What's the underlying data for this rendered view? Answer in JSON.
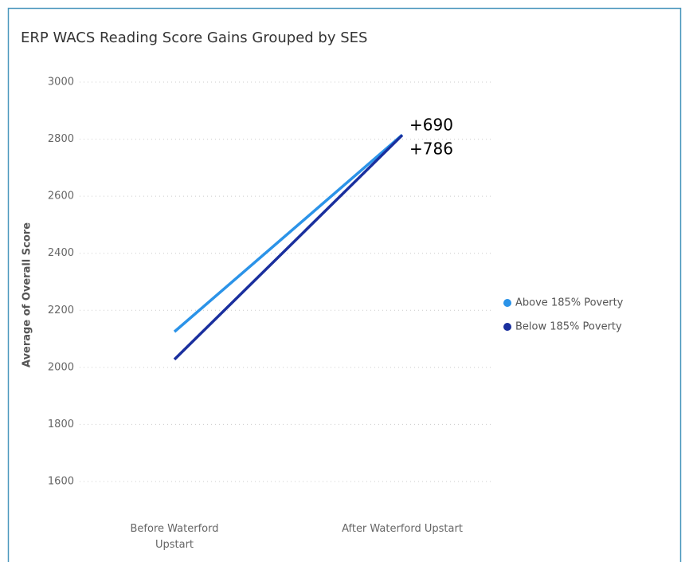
{
  "chart_data": {
    "type": "line",
    "title": "ERP WACS Reading Score Gains Grouped by SES",
    "y_label": "Average of Overall Score",
    "categories": [
      "Before Waterford Upstart",
      "After Waterford Upstart"
    ],
    "series": [
      {
        "name": "Above 185% Poverty",
        "color": "#2b93e8",
        "values": [
          2125,
          2815
        ]
      },
      {
        "name": "Below 185% Poverty",
        "color": "#1a2f9e",
        "values": [
          2028,
          2814
        ]
      }
    ],
    "annotations": [
      "+690",
      "+786"
    ],
    "ylim": [
      1600,
      3000
    ],
    "yticks": [
      1600,
      1800,
      2000,
      2200,
      2400,
      2600,
      2800,
      3000
    ],
    "grid": true,
    "legend": "right"
  }
}
